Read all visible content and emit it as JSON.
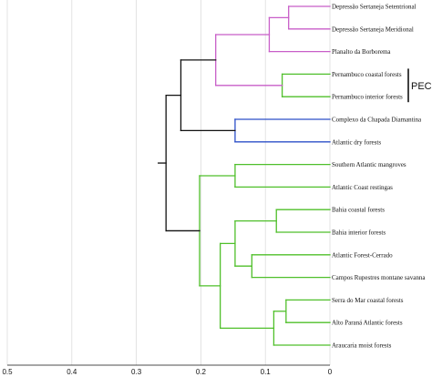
{
  "chart_data": {
    "type": "dendrogram",
    "x_axis": {
      "min": 0,
      "max": 0.5,
      "reversed": true,
      "ticks": [
        "0.5",
        "0.4",
        "0.3",
        "0.2",
        "0.1",
        "0"
      ]
    },
    "grid": true,
    "colors": {
      "purple": "#c85ec8",
      "green": "#4fbf2a",
      "blue": "#2c4fc8",
      "black": "#111111"
    },
    "leaves": [
      {
        "name": "Depressão Sertaneja Setentrional"
      },
      {
        "name": "Depressão Sertaneja Meridional"
      },
      {
        "name": "Planalto da Borborema"
      },
      {
        "name": "Pernambuco coastal forests"
      },
      {
        "name": "Pernambuco interior forests"
      },
      {
        "name": "Complexo da Chapada Diamantina"
      },
      {
        "name": "Atlantic dry forests"
      },
      {
        "name": "Southern Atlantic mangroves"
      },
      {
        "name": "Atlantic Coast restingas"
      },
      {
        "name": "Bahia coastal forests"
      },
      {
        "name": "Bahia interior forests"
      },
      {
        "name": "Atlantic Forest-Cerrado"
      },
      {
        "name": "Campos Rupestres montane savanna"
      },
      {
        "name": "Serra do Mar coastal forests"
      },
      {
        "name": "Alto Paraná Atlantic forests"
      },
      {
        "name": "Araucaria moist forests"
      }
    ],
    "merges": [
      {
        "a": "L0",
        "b": "L1",
        "height": 0.064,
        "color": "purple"
      },
      {
        "a": "M0",
        "b": "L2",
        "height": 0.094,
        "color": "purple"
      },
      {
        "a": "L3",
        "b": "L4",
        "height": 0.074,
        "color": "green"
      },
      {
        "a": "M1",
        "b": "M2",
        "height": 0.177,
        "color": "purple"
      },
      {
        "a": "L5",
        "b": "L6",
        "height": 0.147,
        "color": "blue"
      },
      {
        "a": "M3",
        "b": "M4",
        "height": 0.231,
        "color": "black"
      },
      {
        "a": "L7",
        "b": "L8",
        "height": 0.147,
        "color": "green"
      },
      {
        "a": "L9",
        "b": "L10",
        "height": 0.083,
        "color": "green"
      },
      {
        "a": "L11",
        "b": "L12",
        "height": 0.121,
        "color": "green"
      },
      {
        "a": "M7",
        "b": "M8",
        "height": 0.147,
        "color": "green"
      },
      {
        "a": "L13",
        "b": "L14",
        "height": 0.068,
        "color": "green"
      },
      {
        "a": "M10",
        "b": "L15",
        "height": 0.087,
        "color": "green"
      },
      {
        "a": "M9",
        "b": "M11",
        "height": 0.17,
        "color": "green"
      },
      {
        "a": "M6",
        "b": "M12",
        "height": 0.202,
        "color": "green"
      },
      {
        "a": "M5",
        "b": "M13",
        "height": 0.254,
        "color": "black"
      }
    ],
    "root_stub_height": 0.266,
    "annotation": {
      "label": "PEC",
      "leaves": [
        3,
        4
      ]
    }
  }
}
